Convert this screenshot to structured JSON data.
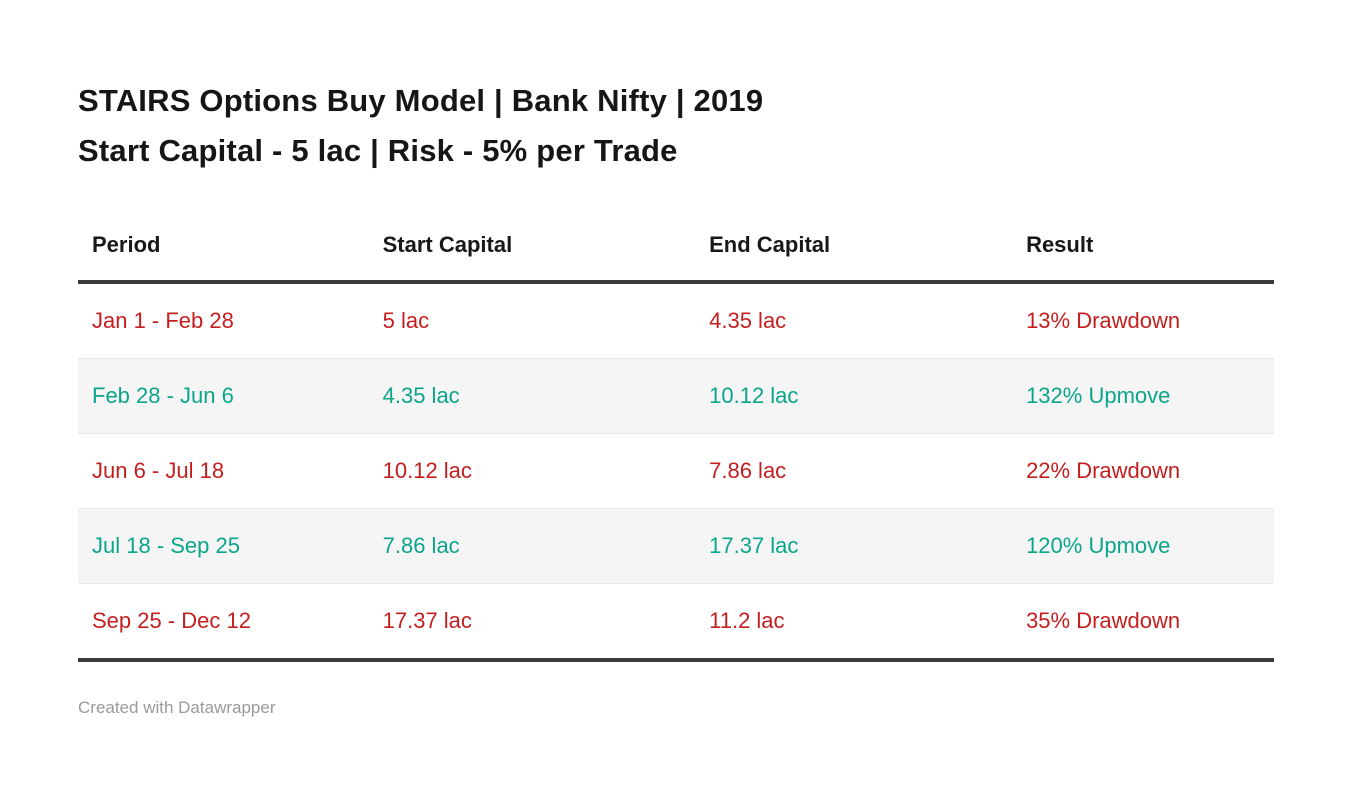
{
  "title": {
    "line1": "STAIRS Options Buy Model | Bank Nifty | 2019",
    "line2": "Start Capital - 5 lac | Risk - 5% per Trade"
  },
  "colors": {
    "drawdown": "#c41e1f",
    "upmove": "#0ba58c",
    "header_text": "#181818",
    "rule": "#3a3a3a",
    "stripe": "#f5f5f5"
  },
  "chart_data": {
    "type": "table",
    "columns": [
      "Period",
      "Start Capital",
      "End Capital",
      "Result"
    ],
    "rows": [
      {
        "period": "Jan 1 - Feb 28",
        "start": "5 lac",
        "end": "4.35 lac",
        "result": "13% Drawdown",
        "trend": "drawdown"
      },
      {
        "period": "Feb 28 - Jun 6",
        "start": "4.35 lac",
        "end": "10.12 lac",
        "result": "132% Upmove",
        "trend": "upmove"
      },
      {
        "period": "Jun 6 - Jul 18",
        "start": "10.12 lac",
        "end": "7.86 lac",
        "result": "22% Drawdown",
        "trend": "drawdown"
      },
      {
        "period": "Jul 18 - Sep 25",
        "start": "7.86 lac",
        "end": "17.37 lac",
        "result": "120% Upmove",
        "trend": "upmove"
      },
      {
        "period": "Sep 25 - Dec 12",
        "start": "17.37 lac",
        "end": "11.2 lac",
        "result": "35% Drawdown",
        "trend": "drawdown"
      }
    ]
  },
  "footer": {
    "attribution": "Created with Datawrapper"
  }
}
